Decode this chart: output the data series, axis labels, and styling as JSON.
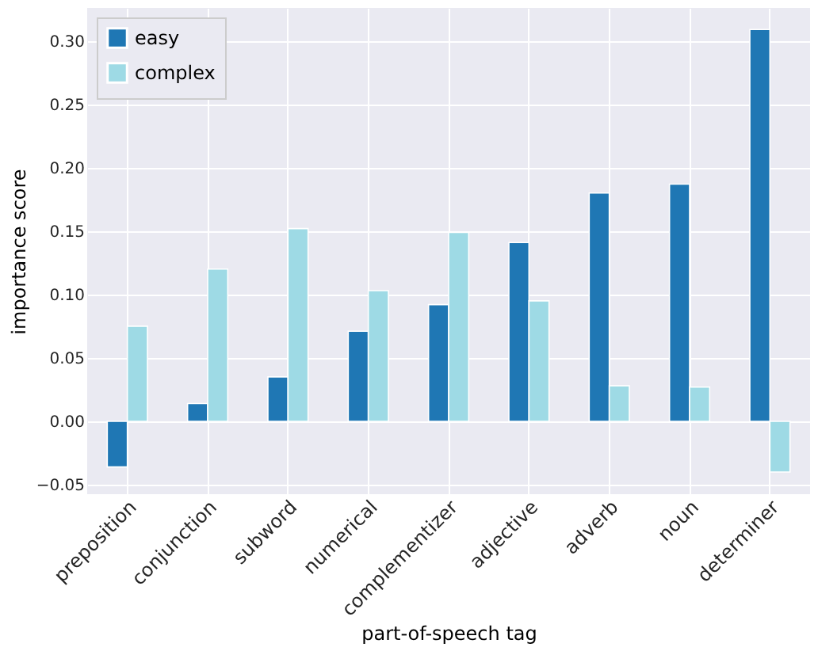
{
  "chart_data": {
    "type": "bar",
    "xlabel": "part-of-speech tag",
    "ylabel": "importance score",
    "categories": [
      "preposition",
      "conjunction",
      "subword",
      "numerical",
      "complementizer",
      "adjective",
      "adverb",
      "noun",
      "determiner"
    ],
    "series": [
      {
        "name": "easy",
        "color": "#1f77b4",
        "values": [
          -0.036,
          0.014,
          0.035,
          0.071,
          0.092,
          0.141,
          0.18,
          0.187,
          0.309
        ]
      },
      {
        "name": "complex",
        "color": "#9edae5",
        "values": [
          0.075,
          0.12,
          0.152,
          0.103,
          0.149,
          0.095,
          0.028,
          0.027,
          -0.04
        ]
      }
    ],
    "ylim": [
      -0.0575,
      0.326
    ],
    "yticks": [
      {
        "value": -0.05,
        "label": "−0.05"
      },
      {
        "value": 0,
        "label": "0.00"
      },
      {
        "value": 0.05,
        "label": "0.05"
      },
      {
        "value": 0.1,
        "label": "0.10"
      },
      {
        "value": 0.15,
        "label": "0.15"
      },
      {
        "value": 0.2,
        "label": "0.20"
      },
      {
        "value": 0.25,
        "label": "0.25"
      },
      {
        "value": 0.3,
        "label": "0.30"
      }
    ],
    "grid": true,
    "legend": "top left"
  }
}
